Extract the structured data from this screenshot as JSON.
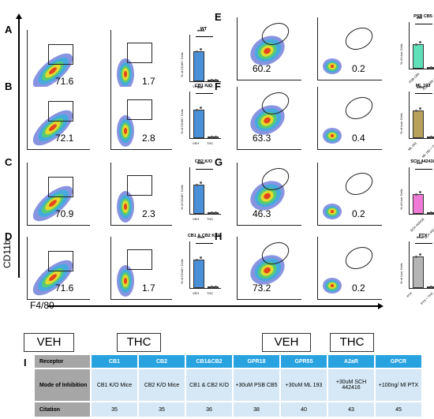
{
  "panels": {
    "A": {
      "letter": "A",
      "veh_pct": "71.6",
      "thc_pct": "1.7",
      "title": "WT",
      "sig": "****",
      "ylabel": "% of CD45+ Cells",
      "x1": "VEH",
      "x2": "THC",
      "veh_bar": 68,
      "color": "#4a90d9"
    },
    "B": {
      "letter": "B",
      "veh_pct": "72.1",
      "thc_pct": "2.8",
      "title": "CB1 K/O",
      "sig": "***",
      "ylabel": "% of CD45+ Cells",
      "x1": "VEH",
      "x2": "THC",
      "veh_bar": 65,
      "color": "#4a90d9"
    },
    "C": {
      "letter": "C",
      "veh_pct": "70.9",
      "thc_pct": "2.3",
      "title": "CB2 K/O",
      "sig": "****",
      "ylabel": "% of CD45+ Cells",
      "x1": "VEH",
      "x2": "THC",
      "veh_bar": 66,
      "color": "#4a90d9"
    },
    "D": {
      "letter": "D",
      "veh_pct": "71.6",
      "thc_pct": "1.7",
      "title": "CB1 & CB2 K/O",
      "sig": "****",
      "ylabel": "% of CD45+ Cells",
      "x1": "VEH",
      "x2": "THC",
      "veh_bar": 64,
      "color": "#4a90d9"
    },
    "E": {
      "letter": "E",
      "veh_pct": "60.2",
      "thc_pct": "0.2",
      "title": "PSB CB5",
      "sig": "***",
      "ylabel": "% of Live Cells",
      "x1": "PSB CB5",
      "x2": "PSB CB5 + THC",
      "veh_bar": 55,
      "color": "#5fe0b8"
    },
    "F": {
      "letter": "F",
      "veh_pct": "63.3",
      "thc_pct": "0.4",
      "title": "ML 193",
      "sig": "****",
      "ylabel": "% of Live Cells",
      "x1": "ML 193",
      "x2": "ML 193 + THC",
      "veh_bar": 62,
      "color": "#b8a15a"
    },
    "G": {
      "letter": "G",
      "veh_pct": "46.3",
      "thc_pct": "0.2",
      "title": "SCH 442416",
      "sig": "***",
      "ylabel": "% of Live Cells",
      "x1": "SCH 442416",
      "x2": "SCH 442416 + THC",
      "veh_bar": 45,
      "color": "#f07ad6"
    },
    "H": {
      "letter": "H",
      "veh_pct": "73.2",
      "thc_pct": "0.2",
      "title": "PTX",
      "sig": "****",
      "ylabel": "% of Live Cells",
      "x1": "PTX",
      "x2": "PTX + THC",
      "veh_bar": 72,
      "color": "#b5b5b5"
    }
  },
  "axes": {
    "y": "CD11b",
    "x": "F4/80"
  },
  "legend": {
    "left_veh": "VEH",
    "left_thc": "THC",
    "right_veh": "VEH",
    "right_thc": "THC"
  },
  "table": {
    "letter": "I",
    "row_heads": [
      "Receptor",
      "Mode of Inhibition",
      "Citation"
    ],
    "columns": [
      {
        "receptor": "CB1",
        "mode": "CB1 K/O Mice",
        "citation": "35"
      },
      {
        "receptor": "CB2",
        "mode": "CB2 K/O Mice",
        "citation": "35"
      },
      {
        "receptor": "CB1&CB2",
        "mode": "CB1 & CB2 K/O",
        "citation": "36"
      },
      {
        "receptor": "GPR18",
        "mode": "+30uM PSB CB5",
        "citation": "38"
      },
      {
        "receptor": "GPR55",
        "mode": "+30uM ML 193",
        "citation": "40"
      },
      {
        "receptor": "A2aR",
        "mode": "+30uM SCH 442416",
        "citation": "43"
      },
      {
        "receptor": "GPCR",
        "mode": "+100ng/ Ml PTX",
        "citation": "45"
      }
    ]
  }
}
